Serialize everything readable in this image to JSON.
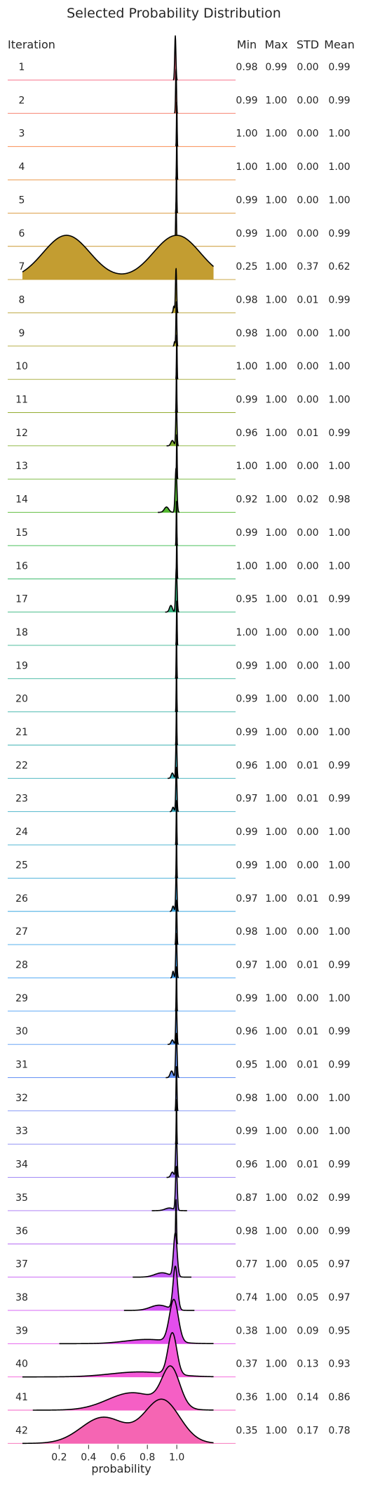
{
  "chart_data": {
    "type": "ridgeline",
    "title": "Selected Probability Distribution",
    "xlabel": "probability",
    "xlim": [
      -0.15,
      1.4
    ],
    "xticks": [
      0.2,
      0.4,
      0.6,
      0.8,
      1.0
    ],
    "xtick_labels": [
      "0.2",
      "0.4",
      "0.6",
      "0.8",
      "1.0"
    ],
    "headers": {
      "iteration": "Iteration",
      "min": "Min",
      "max": "Max",
      "std": "STD",
      "mean": "Mean"
    },
    "rows": [
      {
        "iteration": "1",
        "min": "0.98",
        "max": "0.99",
        "std": "0.00",
        "mean": "0.99",
        "color": "#f77189",
        "components": [
          {
            "mu": 0.99,
            "sigma": 0.004,
            "w": 1
          }
        ]
      },
      {
        "iteration": "2",
        "min": "0.99",
        "max": "1.00",
        "std": "0.00",
        "mean": "0.99",
        "color": "#f6745f",
        "components": [
          {
            "mu": 0.995,
            "sigma": 0.003,
            "w": 1
          }
        ]
      },
      {
        "iteration": "3",
        "min": "1.00",
        "max": "1.00",
        "std": "0.00",
        "mean": "1.00",
        "color": "#f77d3a",
        "components": [
          {
            "mu": 1.0,
            "sigma": 0.002,
            "w": 1
          }
        ]
      },
      {
        "iteration": "4",
        "min": "1.00",
        "max": "1.00",
        "std": "0.00",
        "mean": "1.00",
        "color": "#e8892e",
        "components": [
          {
            "mu": 1.0,
            "sigma": 0.002,
            "w": 1
          }
        ]
      },
      {
        "iteration": "5",
        "min": "0.99",
        "max": "1.00",
        "std": "0.00",
        "mean": "1.00",
        "color": "#d8922f",
        "components": [
          {
            "mu": 0.998,
            "sigma": 0.002,
            "w": 1
          }
        ]
      },
      {
        "iteration": "6",
        "min": "0.99",
        "max": "1.00",
        "std": "0.00",
        "mean": "0.99",
        "color": "#cc9830",
        "components": [
          {
            "mu": 0.995,
            "sigma": 0.003,
            "w": 1
          }
        ]
      },
      {
        "iteration": "7",
        "min": "0.25",
        "max": "1.00",
        "std": "0.37",
        "mean": "0.62",
        "color": "#c39d31",
        "components": [
          {
            "mu": 0.25,
            "sigma": 0.16,
            "w": 1
          },
          {
            "mu": 1.0,
            "sigma": 0.16,
            "w": 1
          }
        ]
      },
      {
        "iteration": "8",
        "min": "0.98",
        "max": "1.00",
        "std": "0.01",
        "mean": "0.99",
        "color": "#b8a131",
        "components": [
          {
            "mu": 0.995,
            "sigma": 0.004,
            "w": 1
          },
          {
            "mu": 0.98,
            "sigma": 0.004,
            "w": 0.15
          }
        ]
      },
      {
        "iteration": "9",
        "min": "0.98",
        "max": "1.00",
        "std": "0.00",
        "mean": "1.00",
        "color": "#ada531",
        "components": [
          {
            "mu": 0.997,
            "sigma": 0.003,
            "w": 1
          },
          {
            "mu": 0.985,
            "sigma": 0.003,
            "w": 0.1
          }
        ]
      },
      {
        "iteration": "10",
        "min": "1.00",
        "max": "1.00",
        "std": "0.00",
        "mean": "1.00",
        "color": "#a1a831",
        "components": [
          {
            "mu": 1.0,
            "sigma": 0.002,
            "w": 1
          }
        ]
      },
      {
        "iteration": "11",
        "min": "0.99",
        "max": "1.00",
        "std": "0.00",
        "mean": "1.00",
        "color": "#94ac31",
        "components": [
          {
            "mu": 0.998,
            "sigma": 0.002,
            "w": 1
          }
        ]
      },
      {
        "iteration": "12",
        "min": "0.96",
        "max": "1.00",
        "std": "0.01",
        "mean": "0.99",
        "color": "#83b031",
        "components": [
          {
            "mu": 0.997,
            "sigma": 0.004,
            "w": 1
          },
          {
            "mu": 0.97,
            "sigma": 0.01,
            "w": 0.12
          }
        ]
      },
      {
        "iteration": "13",
        "min": "1.00",
        "max": "1.00",
        "std": "0.00",
        "mean": "1.00",
        "color": "#6fb431",
        "components": [
          {
            "mu": 1.0,
            "sigma": 0.002,
            "w": 1
          }
        ]
      },
      {
        "iteration": "14",
        "min": "0.92",
        "max": "1.00",
        "std": "0.02",
        "mean": "0.98",
        "color": "#53b831",
        "components": [
          {
            "mu": 0.995,
            "sigma": 0.006,
            "w": 1
          },
          {
            "mu": 0.93,
            "sigma": 0.015,
            "w": 0.12
          }
        ]
      },
      {
        "iteration": "15",
        "min": "0.99",
        "max": "1.00",
        "std": "0.00",
        "mean": "1.00",
        "color": "#32b845",
        "components": [
          {
            "mu": 0.998,
            "sigma": 0.002,
            "w": 1
          }
        ]
      },
      {
        "iteration": "16",
        "min": "1.00",
        "max": "1.00",
        "std": "0.00",
        "mean": "1.00",
        "color": "#33b766",
        "components": [
          {
            "mu": 1.0,
            "sigma": 0.002,
            "w": 1
          }
        ]
      },
      {
        "iteration": "17",
        "min": "0.95",
        "max": "1.00",
        "std": "0.01",
        "mean": "0.99",
        "color": "#34b57e",
        "components": [
          {
            "mu": 0.997,
            "sigma": 0.005,
            "w": 1
          },
          {
            "mu": 0.96,
            "sigma": 0.01,
            "w": 0.15
          }
        ]
      },
      {
        "iteration": "18",
        "min": "1.00",
        "max": "1.00",
        "std": "0.00",
        "mean": "1.00",
        "color": "#35b38f",
        "components": [
          {
            "mu": 1.0,
            "sigma": 0.002,
            "w": 1
          }
        ]
      },
      {
        "iteration": "19",
        "min": "0.99",
        "max": "1.00",
        "std": "0.00",
        "mean": "1.00",
        "color": "#35b29c",
        "components": [
          {
            "mu": 0.998,
            "sigma": 0.002,
            "w": 1
          }
        ]
      },
      {
        "iteration": "20",
        "min": "0.99",
        "max": "1.00",
        "std": "0.00",
        "mean": "1.00",
        "color": "#36b0a7",
        "components": [
          {
            "mu": 0.998,
            "sigma": 0.002,
            "w": 1
          }
        ]
      },
      {
        "iteration": "21",
        "min": "0.99",
        "max": "1.00",
        "std": "0.00",
        "mean": "1.00",
        "color": "#37afb1",
        "components": [
          {
            "mu": 0.998,
            "sigma": 0.002,
            "w": 1
          }
        ]
      },
      {
        "iteration": "22",
        "min": "0.96",
        "max": "1.00",
        "std": "0.01",
        "mean": "0.99",
        "color": "#38aeba",
        "components": [
          {
            "mu": 0.997,
            "sigma": 0.004,
            "w": 1
          },
          {
            "mu": 0.97,
            "sigma": 0.008,
            "w": 0.12
          }
        ]
      },
      {
        "iteration": "23",
        "min": "0.97",
        "max": "1.00",
        "std": "0.01",
        "mean": "0.99",
        "color": "#39acc3",
        "components": [
          {
            "mu": 0.997,
            "sigma": 0.004,
            "w": 1
          },
          {
            "mu": 0.975,
            "sigma": 0.006,
            "w": 0.1
          }
        ]
      },
      {
        "iteration": "24",
        "min": "0.99",
        "max": "1.00",
        "std": "0.00",
        "mean": "1.00",
        "color": "#3aabcc",
        "components": [
          {
            "mu": 0.998,
            "sigma": 0.002,
            "w": 1
          }
        ]
      },
      {
        "iteration": "25",
        "min": "0.99",
        "max": "1.00",
        "std": "0.00",
        "mean": "1.00",
        "color": "#3ba9d6",
        "components": [
          {
            "mu": 0.998,
            "sigma": 0.002,
            "w": 1
          }
        ]
      },
      {
        "iteration": "26",
        "min": "0.97",
        "max": "1.00",
        "std": "0.01",
        "mean": "0.99",
        "color": "#3ca7e1",
        "components": [
          {
            "mu": 0.997,
            "sigma": 0.004,
            "w": 1
          },
          {
            "mu": 0.975,
            "sigma": 0.006,
            "w": 0.12
          }
        ]
      },
      {
        "iteration": "27",
        "min": "0.98",
        "max": "1.00",
        "std": "0.00",
        "mean": "1.00",
        "color": "#3ea4ea",
        "components": [
          {
            "mu": 0.998,
            "sigma": 0.003,
            "w": 1
          }
        ]
      },
      {
        "iteration": "28",
        "min": "0.97",
        "max": "1.00",
        "std": "0.01",
        "mean": "0.99",
        "color": "#40a1f3",
        "components": [
          {
            "mu": 0.997,
            "sigma": 0.004,
            "w": 1
          },
          {
            "mu": 0.975,
            "sigma": 0.005,
            "w": 0.15
          }
        ]
      },
      {
        "iteration": "29",
        "min": "0.99",
        "max": "1.00",
        "std": "0.00",
        "mean": "1.00",
        "color": "#479cf4",
        "components": [
          {
            "mu": 0.998,
            "sigma": 0.002,
            "w": 1
          }
        ]
      },
      {
        "iteration": "30",
        "min": "0.96",
        "max": "1.00",
        "std": "0.01",
        "mean": "0.99",
        "color": "#5597f4",
        "components": [
          {
            "mu": 0.997,
            "sigma": 0.004,
            "w": 1
          },
          {
            "mu": 0.97,
            "sigma": 0.008,
            "w": 0.1
          }
        ]
      },
      {
        "iteration": "31",
        "min": "0.95",
        "max": "1.00",
        "std": "0.01",
        "mean": "0.99",
        "color": "#6491f4",
        "components": [
          {
            "mu": 0.997,
            "sigma": 0.005,
            "w": 1
          },
          {
            "mu": 0.965,
            "sigma": 0.01,
            "w": 0.15
          }
        ]
      },
      {
        "iteration": "32",
        "min": "0.98",
        "max": "1.00",
        "std": "0.00",
        "mean": "1.00",
        "color": "#738af4",
        "components": [
          {
            "mu": 0.998,
            "sigma": 0.003,
            "w": 1
          }
        ]
      },
      {
        "iteration": "33",
        "min": "0.99",
        "max": "1.00",
        "std": "0.00",
        "mean": "1.00",
        "color": "#8383f4",
        "components": [
          {
            "mu": 0.998,
            "sigma": 0.002,
            "w": 1
          }
        ]
      },
      {
        "iteration": "34",
        "min": "0.96",
        "max": "1.00",
        "std": "0.01",
        "mean": "0.99",
        "color": "#9379f4",
        "components": [
          {
            "mu": 0.997,
            "sigma": 0.005,
            "w": 1
          },
          {
            "mu": 0.97,
            "sigma": 0.01,
            "w": 0.12
          }
        ]
      },
      {
        "iteration": "35",
        "min": "0.87",
        "max": "1.00",
        "std": "0.02",
        "mean": "0.99",
        "color": "#a46ff4",
        "components": [
          {
            "mu": 0.997,
            "sigma": 0.006,
            "w": 1
          },
          {
            "mu": 0.95,
            "sigma": 0.03,
            "w": 0.06
          }
        ]
      },
      {
        "iteration": "36",
        "min": "0.98",
        "max": "1.00",
        "std": "0.00",
        "mean": "0.99",
        "color": "#b465f4",
        "components": [
          {
            "mu": 0.995,
            "sigma": 0.003,
            "w": 1
          }
        ]
      },
      {
        "iteration": "37",
        "min": "0.77",
        "max": "1.00",
        "std": "0.05",
        "mean": "0.97",
        "color": "#c45af4",
        "components": [
          {
            "mu": 0.99,
            "sigma": 0.012,
            "w": 1
          },
          {
            "mu": 0.9,
            "sigma": 0.05,
            "w": 0.1
          }
        ]
      },
      {
        "iteration": "38",
        "min": "0.74",
        "max": "1.00",
        "std": "0.05",
        "mean": "0.97",
        "color": "#d24ff4",
        "components": [
          {
            "mu": 0.99,
            "sigma": 0.015,
            "w": 1
          },
          {
            "mu": 0.88,
            "sigma": 0.06,
            "w": 0.12
          }
        ]
      },
      {
        "iteration": "39",
        "min": "0.38",
        "max": "1.00",
        "std": "0.09",
        "mean": "0.95",
        "color": "#e34eec",
        "components": [
          {
            "mu": 0.98,
            "sigma": 0.03,
            "w": 1
          },
          {
            "mu": 0.8,
            "sigma": 0.15,
            "w": 0.1
          }
        ]
      },
      {
        "iteration": "40",
        "min": "0.37",
        "max": "1.00",
        "std": "0.13",
        "mean": "0.93",
        "color": "#f459d8",
        "components": [
          {
            "mu": 0.97,
            "sigma": 0.03,
            "w": 1
          },
          {
            "mu": 0.75,
            "sigma": 0.2,
            "w": 0.12
          }
        ]
      },
      {
        "iteration": "41",
        "min": "0.36",
        "max": "1.00",
        "std": "0.14",
        "mean": "0.86",
        "color": "#f55fc5",
        "components": [
          {
            "mu": 0.96,
            "sigma": 0.06,
            "w": 1
          },
          {
            "mu": 0.7,
            "sigma": 0.17,
            "w": 0.45
          }
        ]
      },
      {
        "iteration": "42",
        "min": "0.35",
        "max": "1.00",
        "std": "0.17",
        "mean": "0.78",
        "color": "#f565b3",
        "components": [
          {
            "mu": 0.9,
            "sigma": 0.12,
            "w": 1
          },
          {
            "mu": 0.5,
            "sigma": 0.15,
            "w": 0.6
          }
        ]
      }
    ]
  }
}
